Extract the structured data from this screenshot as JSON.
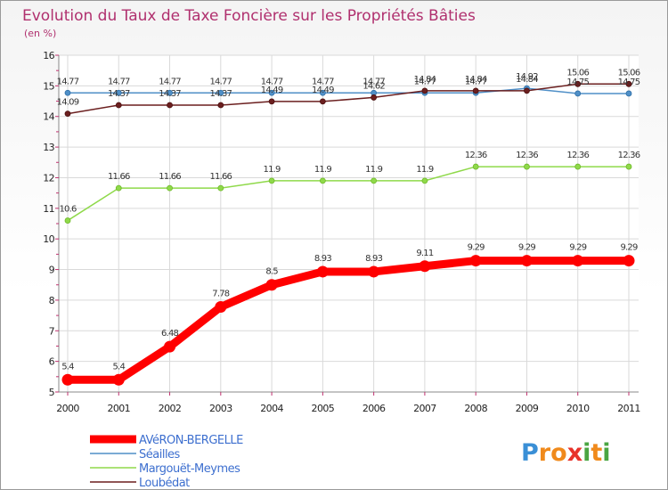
{
  "chart_data": {
    "type": "line",
    "title": "Evolution du Taux de Taxe Foncière sur les Propriétés Bâties",
    "subtitle": "(en %)",
    "x": [
      "2000",
      "2001",
      "2002",
      "2003",
      "2004",
      "2005",
      "2006",
      "2007",
      "2008",
      "2009",
      "2010",
      "2011"
    ],
    "ylim": [
      5,
      16
    ],
    "yticks": [
      "5",
      "6",
      "7",
      "8",
      "9",
      "10",
      "11",
      "12",
      "13",
      "14",
      "15",
      "16"
    ],
    "grid": true,
    "legend_position": "bottom-left",
    "series": [
      {
        "name": "AVéRON-BERGELLE",
        "color": "#ff0000",
        "values": [
          5.4,
          5.4,
          6.48,
          7.78,
          8.5,
          8.93,
          8.93,
          9.11,
          9.29,
          9.29,
          9.29,
          9.29
        ],
        "labels": [
          "5.4",
          "5.4",
          "6.48",
          "7.78",
          "8.5",
          "8.93",
          "8.93",
          "9.11",
          "9.29",
          "9.29",
          "9.29",
          "9.29"
        ]
      },
      {
        "name": "Séailles",
        "color": "#4f8fc7",
        "values": [
          14.77,
          14.77,
          14.77,
          14.77,
          14.77,
          14.77,
          14.77,
          14.77,
          14.77,
          14.92,
          14.75,
          14.75
        ],
        "labels": [
          "14.77",
          "14.77",
          "14.77",
          "14.77",
          "14.77",
          "14.77",
          "14.77",
          "14.77",
          "14.77",
          "14.92",
          "14.75",
          "14.75"
        ]
      },
      {
        "name": "Margouët-Meymes",
        "color": "#8fd94a",
        "values": [
          10.6,
          11.66,
          11.66,
          11.66,
          11.9,
          11.9,
          11.9,
          11.9,
          12.36,
          12.36,
          12.36,
          12.36
        ],
        "labels": [
          "10.6",
          "11.66",
          "11.66",
          "11.66",
          "11.9",
          "11.9",
          "11.9",
          "11.9",
          "12.36",
          "12.36",
          "12.36",
          "12.36"
        ]
      },
      {
        "name": "Loubédat",
        "color": "#6b1f1f",
        "values": [
          14.09,
          14.37,
          14.37,
          14.37,
          14.49,
          14.49,
          14.62,
          14.84,
          14.84,
          14.84,
          15.06,
          15.06
        ],
        "labels": [
          "14.09",
          "14.37",
          "14.37",
          "14.37",
          "14.49",
          "14.49",
          "14.62",
          "14.84",
          "14.84",
          "14.84",
          "15.06",
          "15.06"
        ]
      }
    ]
  },
  "logo": {
    "p": "P",
    "r": "r",
    "o": "o",
    "x": "x",
    "i1": "i",
    "t": "t",
    "i2": "i"
  }
}
